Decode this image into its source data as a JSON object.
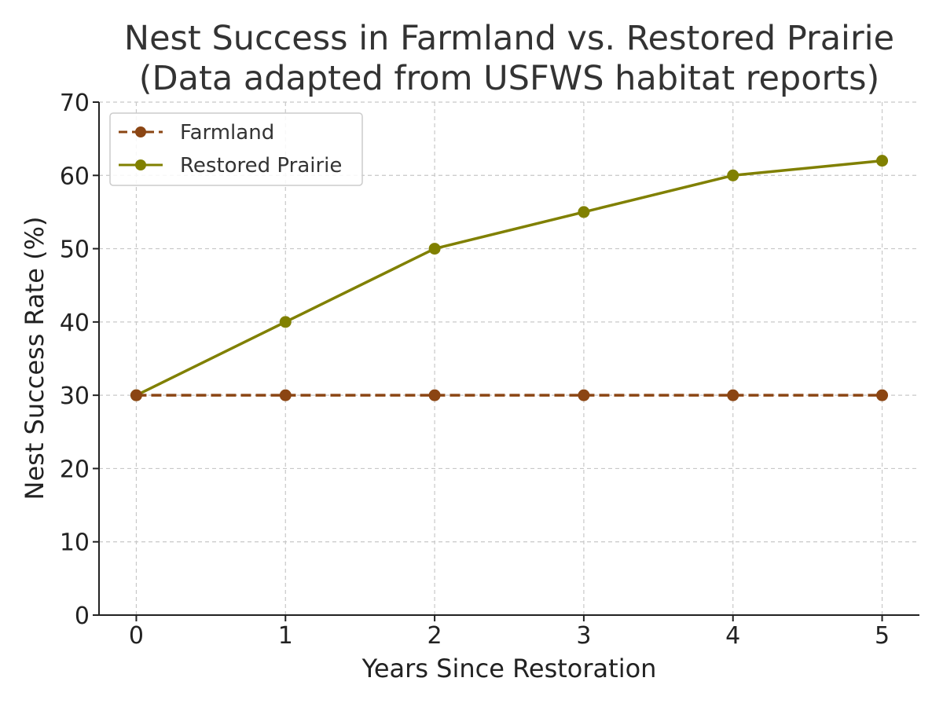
{
  "chart_data": {
    "type": "line",
    "title": "Nest Success in Farmland vs. Restored Prairie",
    "subtitle": "(Data adapted from USFWS habitat reports)",
    "xlabel": "Years Since Restoration",
    "ylabel": "Nest Success Rate (%)",
    "x": [
      0,
      1,
      2,
      3,
      4,
      5
    ],
    "x_ticks": [
      "0",
      "1",
      "2",
      "3",
      "4",
      "5"
    ],
    "xlim": [
      -0.25,
      5.25
    ],
    "ylim": [
      0,
      70
    ],
    "y_ticks": [
      "0",
      "10",
      "20",
      "30",
      "40",
      "50",
      "60",
      "70"
    ],
    "grid": true,
    "legend_position": "top-left",
    "series": [
      {
        "name": "Farmland",
        "values": [
          30,
          30,
          30,
          30,
          30,
          30
        ],
        "color": "#8B4513",
        "line_style": "dashed",
        "marker": "circle"
      },
      {
        "name": "Restored Prairie",
        "values": [
          30,
          40,
          50,
          55,
          60,
          62
        ],
        "color": "#808000",
        "line_style": "solid",
        "marker": "circle"
      }
    ]
  }
}
